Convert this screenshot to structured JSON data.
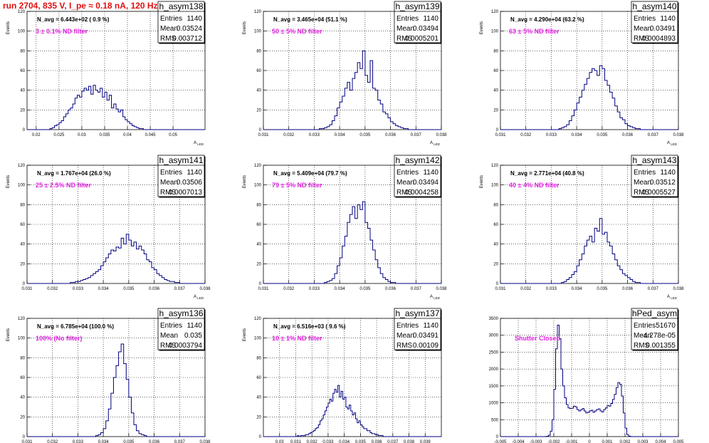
{
  "run_title": "run 2704,   835 V, I_pe ≈ 0.18 nA, 120 Hz",
  "colors": {
    "histogram": "#000080",
    "filter_text": "#e020e0",
    "title": "#e01010",
    "grid": "#000000"
  },
  "chart_data": [
    {
      "type": "bar",
      "name": "h_asym138",
      "navg": "N_avg = 6.443e+02 ( 0.9 %)",
      "filter": "3 ± 0.1% ND filter",
      "stats": {
        "entries_label": "Entries",
        "entries": "1140",
        "mean_label": "Mean",
        "mean": "0.03524",
        "rms_label": "RMS",
        "rms": "0.003712"
      },
      "ylabel": "Events",
      "xlabel": "A_LED",
      "xlim": [
        0.018,
        0.057
      ],
      "ylim": [
        0,
        120
      ],
      "xticks": [
        "0.02",
        "0.025",
        "0.03",
        "0.035",
        "0.04",
        "0.045",
        "0.05"
      ],
      "yticks": [
        "0",
        "20",
        "40",
        "60",
        "80",
        "100",
        "120"
      ],
      "bins": {
        "x0": 0.018,
        "width": 0.0005,
        "values": [
          0,
          0,
          0,
          0,
          0,
          0,
          0,
          0,
          0,
          0,
          1,
          2,
          4,
          5,
          7,
          9,
          13,
          16,
          20,
          22,
          26,
          32,
          35,
          33,
          39,
          42,
          40,
          44,
          36,
          45,
          40,
          38,
          42,
          33,
          38,
          30,
          35,
          22,
          26,
          21,
          18,
          20,
          13,
          10,
          8,
          6,
          4,
          3,
          2,
          1,
          1,
          0,
          0,
          0,
          0,
          0,
          0,
          0,
          0,
          0,
          0,
          0,
          0,
          0,
          0,
          0,
          0,
          0,
          0,
          0,
          0,
          0,
          0,
          0,
          0,
          0,
          0,
          0
        ]
      }
    },
    {
      "type": "bar",
      "name": "h_asym139",
      "navg": "N_avg = 3.465e+04 (51.1 %)",
      "filter": "50 ± 5% ND filter",
      "stats": {
        "entries_label": "Entries",
        "entries": "1140",
        "mean_label": "Mean",
        "mean": "0.03494",
        "rms_label": "RMS",
        "rms": "0.0005201"
      },
      "ylabel": "Events",
      "xlabel": "A_LED",
      "xlim": [
        0.031,
        0.038
      ],
      "ylim": [
        0,
        120
      ],
      "xticks": [
        "0.031",
        "0.032",
        "0.033",
        "0.034",
        "0.035",
        "0.036",
        "0.037",
        "0.038"
      ],
      "yticks": [
        "0",
        "20",
        "40",
        "60",
        "80",
        "100",
        "120"
      ],
      "bins": {
        "x0": 0.031,
        "width": 0.0001,
        "values": [
          0,
          0,
          0,
          0,
          0,
          0,
          0,
          0,
          0,
          0,
          0,
          0,
          0,
          0,
          0,
          0,
          0,
          0,
          0,
          0,
          0,
          0,
          1,
          1,
          2,
          3,
          5,
          9,
          14,
          22,
          28,
          34,
          42,
          48,
          40,
          52,
          58,
          68,
          62,
          80,
          55,
          48,
          70,
          42,
          40,
          30,
          26,
          18,
          16,
          12,
          8,
          6,
          4,
          3,
          2,
          1,
          1,
          0,
          0,
          0,
          0,
          0,
          0,
          0,
          0,
          0,
          0,
          0,
          0,
          0
        ]
      }
    },
    {
      "type": "bar",
      "name": "h_asym140",
      "navg": "N_avg = 4.290e+04 (63.2 %)",
      "filter": "63 ± 5% ND filter",
      "stats": {
        "entries_label": "Entries",
        "entries": "1140",
        "mean_label": "Mean",
        "mean": "0.03491",
        "rms_label": "RMS",
        "rms": "0.0004893"
      },
      "ylabel": "Events",
      "xlabel": "A_LED",
      "xlim": [
        0.031,
        0.038
      ],
      "ylim": [
        0,
        120
      ],
      "xticks": [
        "0.031",
        "0.032",
        "0.033",
        "0.034",
        "0.035",
        "0.036",
        "0.037",
        "0.038"
      ],
      "yticks": [
        "0",
        "20",
        "40",
        "60",
        "80",
        "100",
        "120"
      ],
      "bins": {
        "x0": 0.031,
        "width": 0.0001,
        "values": [
          0,
          0,
          0,
          0,
          0,
          0,
          0,
          0,
          0,
          0,
          0,
          0,
          0,
          0,
          0,
          0,
          0,
          0,
          0,
          0,
          0,
          0,
          0,
          1,
          2,
          3,
          5,
          9,
          14,
          20,
          27,
          33,
          40,
          46,
          52,
          58,
          62,
          60,
          55,
          65,
          62,
          50,
          45,
          38,
          32,
          24,
          18,
          12,
          10,
          6,
          4,
          3,
          2,
          1,
          1,
          0,
          0,
          0,
          0,
          0,
          0,
          0,
          0,
          0,
          0,
          0,
          0,
          0,
          0,
          0
        ]
      }
    },
    {
      "type": "bar",
      "name": "h_asym141",
      "navg": "N_avg = 1.767e+04 (26.0 %)",
      "filter": "25 ± 2.5% ND filter",
      "stats": {
        "entries_label": "Entries",
        "entries": "1140",
        "mean_label": "Mean",
        "mean": "0.03506",
        "rms_label": "RMS",
        "rms": "0.0007013"
      },
      "ylabel": "Events",
      "xlabel": "A_LED",
      "xlim": [
        0.031,
        0.038
      ],
      "ylim": [
        0,
        120
      ],
      "xticks": [
        "0.031",
        "0.032",
        "0.033",
        "0.034",
        "0.035",
        "0.036",
        "0.037",
        "0.038"
      ],
      "yticks": [
        "0",
        "20",
        "40",
        "60",
        "80",
        "100",
        "120"
      ],
      "bins": {
        "x0": 0.031,
        "width": 0.0001,
        "values": [
          0,
          0,
          0,
          0,
          0,
          0,
          0,
          0,
          0,
          0,
          0,
          0,
          0,
          0,
          0,
          0,
          0,
          1,
          1,
          2,
          2,
          3,
          4,
          5,
          6,
          8,
          10,
          12,
          14,
          18,
          22,
          26,
          30,
          34,
          33,
          37,
          36,
          46,
          40,
          50,
          44,
          38,
          42,
          35,
          38,
          34,
          30,
          24,
          22,
          16,
          14,
          10,
          8,
          6,
          4,
          3,
          2,
          2,
          1,
          1,
          0,
          0,
          0,
          0,
          0,
          0,
          0,
          0,
          0,
          0
        ]
      }
    },
    {
      "type": "bar",
      "name": "h_asym142",
      "navg": "N_avg = 5.409e+04 (79.7 %)",
      "filter": "79 ± 5% ND filter",
      "stats": {
        "entries_label": "Entries",
        "entries": "1140",
        "mean_label": "Mean",
        "mean": "0.03494",
        "rms_label": "RMS",
        "rms": "0.0004258"
      },
      "ylabel": "Events",
      "xlabel": "A_LED",
      "xlim": [
        0.031,
        0.038
      ],
      "ylim": [
        0,
        120
      ],
      "xticks": [
        "0.031",
        "0.032",
        "0.033",
        "0.034",
        "0.035",
        "0.036",
        "0.037",
        "0.038"
      ],
      "yticks": [
        "0",
        "20",
        "40",
        "60",
        "80",
        "100",
        "120"
      ],
      "bins": {
        "x0": 0.031,
        "width": 0.0001,
        "values": [
          0,
          0,
          0,
          0,
          0,
          0,
          0,
          0,
          0,
          0,
          0,
          0,
          0,
          0,
          0,
          0,
          0,
          0,
          0,
          0,
          0,
          0,
          0,
          0,
          1,
          2,
          3,
          5,
          10,
          18,
          26,
          38,
          48,
          62,
          70,
          78,
          66,
          80,
          75,
          83,
          62,
          56,
          44,
          34,
          24,
          16,
          10,
          6,
          4,
          2,
          1,
          1,
          0,
          0,
          0,
          0,
          0,
          0,
          0,
          0,
          0,
          0,
          0,
          0,
          0,
          0,
          0,
          0,
          0,
          0
        ]
      }
    },
    {
      "type": "bar",
      "name": "h_asym143",
      "navg": "N_avg = 2.771e+04 (40.8 %)",
      "filter": "40 ± 4% ND filter",
      "stats": {
        "entries_label": "Entries",
        "entries": "1140",
        "mean_label": "Mean",
        "mean": "0.03512",
        "rms_label": "RMS",
        "rms": "0.0005527"
      },
      "ylabel": "Events",
      "xlabel": "A_LED",
      "xlim": [
        0.031,
        0.038
      ],
      "ylim": [
        0,
        120
      ],
      "xticks": [
        "0.031",
        "0.032",
        "0.033",
        "0.034",
        "0.035",
        "0.036",
        "0.037",
        "0.038"
      ],
      "yticks": [
        "0",
        "20",
        "40",
        "60",
        "80",
        "100",
        "120"
      ],
      "bins": {
        "x0": 0.031,
        "width": 0.0001,
        "values": [
          0,
          0,
          0,
          0,
          0,
          0,
          0,
          0,
          0,
          0,
          0,
          0,
          0,
          0,
          0,
          0,
          0,
          0,
          0,
          0,
          0,
          0,
          0,
          0,
          1,
          2,
          4,
          6,
          9,
          12,
          18,
          24,
          30,
          38,
          44,
          48,
          42,
          56,
          53,
          66,
          50,
          52,
          42,
          38,
          30,
          24,
          18,
          14,
          10,
          8,
          6,
          4,
          2,
          1,
          1,
          0,
          0,
          0,
          0,
          0,
          0,
          0,
          0,
          0,
          0,
          0,
          0,
          0,
          0,
          0
        ]
      }
    },
    {
      "type": "bar",
      "name": "h_asym136",
      "navg": "N_avg = 6.785e+04 (100.0 %)",
      "filter": "100% (No filter)",
      "stats": {
        "entries_label": "Entries",
        "entries": "1140",
        "mean_label": "Mean",
        "mean": "0.035",
        "rms_label": "RMS",
        "rms": "0.0003794"
      },
      "ylabel": "Events",
      "xlabel": "A_LED",
      "xlim": [
        0.031,
        0.038
      ],
      "ylim": [
        0,
        120
      ],
      "xticks": [
        "0.031",
        "0.032",
        "0.033",
        "0.034",
        "0.035",
        "0.036",
        "0.037",
        "0.038"
      ],
      "yticks": [
        "0",
        "20",
        "40",
        "60",
        "80",
        "100",
        "120"
      ],
      "bins": {
        "x0": 0.031,
        "width": 0.0001,
        "values": [
          0,
          0,
          0,
          0,
          0,
          0,
          0,
          0,
          0,
          0,
          0,
          0,
          0,
          0,
          0,
          0,
          0,
          0,
          0,
          0,
          0,
          0,
          0,
          0,
          0,
          0,
          0,
          1,
          2,
          4,
          8,
          16,
          28,
          44,
          60,
          72,
          86,
          94,
          74,
          58,
          40,
          24,
          12,
          6,
          3,
          2,
          1,
          0,
          0,
          0,
          0,
          0,
          0,
          0,
          0,
          0,
          0,
          0,
          0,
          0,
          0,
          0,
          0,
          0,
          0,
          0,
          0,
          0,
          0,
          0
        ]
      }
    },
    {
      "type": "bar",
      "name": "h_asym137",
      "navg": "N_avg = 6.516e+03 ( 9.6 %)",
      "filter": "10 ± 1% ND filter",
      "stats": {
        "entries_label": "Entries",
        "entries": "1140",
        "mean_label": "Mean",
        "mean": "0.03491",
        "rms_label": "RMS",
        "rms": "0.00109"
      },
      "ylabel": "Events",
      "xlabel": "A_LED",
      "xlim": [
        0.029,
        0.04
      ],
      "ylim": [
        0,
        120
      ],
      "xticks": [
        "0.03",
        "0.031",
        "0.032",
        "0.033",
        "0.034",
        "0.035",
        "0.036",
        "0.037",
        "0.038",
        "0.039"
      ],
      "yticks": [
        "0",
        "20",
        "40",
        "60",
        "80",
        "100",
        "120"
      ],
      "bins": {
        "x0": 0.029,
        "width": 0.0001,
        "values": [
          0,
          0,
          0,
          0,
          0,
          0,
          0,
          0,
          0,
          0,
          0,
          0,
          0,
          0,
          0,
          0,
          0,
          0,
          0,
          0,
          0,
          1,
          0,
          1,
          1,
          1,
          2,
          2,
          3,
          4,
          5,
          6,
          8,
          9,
          12,
          16,
          18,
          22,
          26,
          30,
          34,
          38,
          36,
          44,
          48,
          45,
          52,
          40,
          46,
          38,
          40,
          30,
          28,
          32,
          26,
          22,
          24,
          18,
          14,
          16,
          12,
          10,
          8,
          8,
          6,
          6,
          4,
          3,
          3,
          2,
          2,
          1,
          1,
          1,
          0,
          0,
          0,
          0,
          0,
          0,
          0,
          0,
          0,
          0,
          0,
          0,
          0,
          0,
          0,
          0,
          0,
          0,
          0,
          0,
          0,
          0,
          0,
          0,
          0,
          0,
          0,
          0,
          0,
          0,
          0,
          0,
          0,
          0,
          0,
          0
        ]
      }
    },
    {
      "type": "bar",
      "name": "hPed_asym",
      "navg": "",
      "filter": "Shutter Closed",
      "stats": {
        "entries_label": "Entries",
        "entries": "51670",
        "mean_label": "Mean",
        "mean": "-4.278e-05",
        "rms_label": "RMS",
        "rms": "0.001355"
      },
      "ylabel": "",
      "xlabel": "",
      "xlim": [
        -0.005,
        0.005
      ],
      "ylim": [
        0,
        3500
      ],
      "xticks": [
        "-0.005",
        "-0.004",
        "-0.003",
        "-0.002",
        "-0.001",
        "0",
        "0.001",
        "0.002",
        "0.003",
        "0.004",
        "0.005"
      ],
      "yticks": [
        "0",
        "500",
        "1000",
        "1500",
        "2000",
        "2500",
        "3000",
        "3500"
      ],
      "bins": {
        "x0": -0.005,
        "width": 0.0001,
        "values": [
          0,
          0,
          0,
          0,
          0,
          0,
          0,
          0,
          0,
          0,
          0,
          0,
          0,
          0,
          0,
          0,
          0,
          0,
          0,
          0,
          0,
          0,
          0,
          0,
          0,
          2,
          10,
          40,
          160,
          500,
          1400,
          2600,
          3300,
          2900,
          2000,
          1500,
          1150,
          950,
          850,
          830,
          840,
          900,
          880,
          800,
          760,
          790,
          830,
          760,
          700,
          720,
          760,
          780,
          720,
          760,
          800,
          820,
          760,
          730,
          800,
          850,
          920,
          900,
          980,
          1100,
          1250,
          1450,
          1600,
          1550,
          1200,
          700,
          250,
          60,
          12,
          2,
          0,
          0,
          0,
          0,
          0,
          0,
          0,
          0,
          0,
          0,
          0,
          0,
          0,
          0,
          0,
          0,
          0,
          0,
          0,
          0,
          0,
          0,
          0,
          0,
          0,
          0
        ]
      }
    }
  ]
}
